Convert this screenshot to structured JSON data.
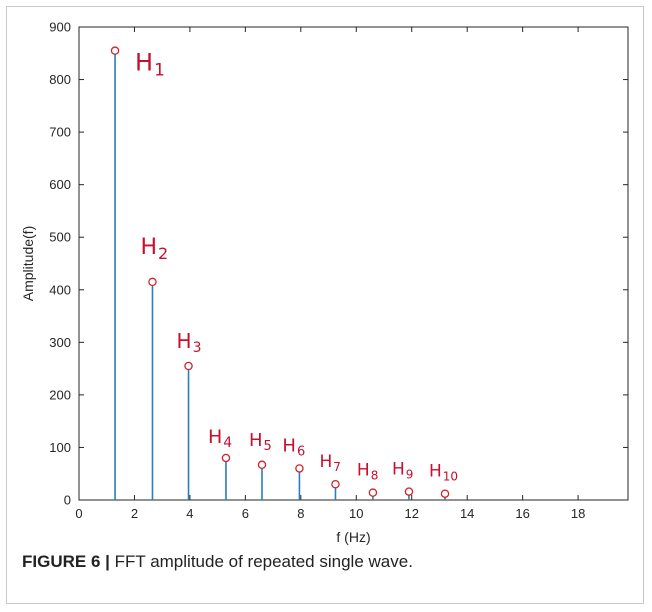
{
  "caption": {
    "prefix": "FIGURE 6 |",
    "text": "FFT amplitude of repeated single wave."
  },
  "colors": {
    "stem": "#2a7fb8",
    "marker": "#d2232a",
    "label": "#c8102e",
    "axis": "#262626"
  },
  "chart_data": {
    "type": "stem",
    "xlabel": "f (Hz)",
    "ylabel": "Amplitude(f)",
    "xlim": [
      0,
      19.8
    ],
    "ylim": [
      0,
      900
    ],
    "xticks": [
      0,
      2,
      4,
      6,
      8,
      10,
      12,
      14,
      16,
      18
    ],
    "yticks": [
      0,
      100,
      200,
      300,
      400,
      500,
      600,
      700,
      800,
      900
    ],
    "grid": false,
    "points": [
      {
        "x": 1.3,
        "y": 855,
        "label": "H",
        "sub": "1"
      },
      {
        "x": 2.65,
        "y": 415,
        "label": "H",
        "sub": "2"
      },
      {
        "x": 3.95,
        "y": 255,
        "label": "H",
        "sub": "3"
      },
      {
        "x": 5.3,
        "y": 80,
        "label": "H",
        "sub": "4"
      },
      {
        "x": 6.6,
        "y": 67,
        "label": "H",
        "sub": "5"
      },
      {
        "x": 7.95,
        "y": 60,
        "label": "H",
        "sub": "6"
      },
      {
        "x": 9.25,
        "y": 30,
        "label": "H",
        "sub": "7"
      },
      {
        "x": 10.6,
        "y": 14,
        "label": "H",
        "sub": "8"
      },
      {
        "x": 11.9,
        "y": 16,
        "label": "H",
        "sub": "9"
      },
      {
        "x": 13.2,
        "y": 12,
        "label": "H",
        "sub": "10"
      }
    ]
  }
}
